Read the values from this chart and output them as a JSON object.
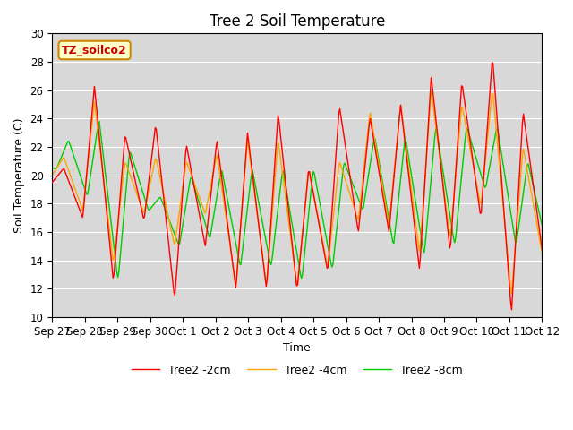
{
  "title": "Tree 2 Soil Temperature",
  "xlabel": "Time",
  "ylabel": "Soil Temperature (C)",
  "ylim": [
    10,
    30
  ],
  "annotation_text": "TZ_soilco2",
  "legend_labels": [
    "Tree2 -2cm",
    "Tree2 -4cm",
    "Tree2 -8cm"
  ],
  "colors": [
    "#ff0000",
    "#ffa500",
    "#00cc00"
  ],
  "bg_color": "#d8d8d8",
  "tick_labels": [
    "Sep 27",
    "Sep 28",
    "Sep 29",
    "Sep 30",
    "Oct 1",
    "Oct 2",
    "Oct 3",
    "Oct 4",
    "Oct 5",
    "Oct 6",
    "Oct 7",
    "Oct 8",
    "Oct 9",
    "Oct 10",
    "Oct 11",
    "Oct 12"
  ],
  "peaks_2cm": [
    20.5,
    26.3,
    22.9,
    23.6,
    22.2,
    22.5,
    23.0,
    24.4,
    20.5,
    24.9,
    24.1,
    25.0,
    27.0,
    26.6,
    28.4,
    24.5,
    24.2
  ],
  "valleys_2cm": [
    19.5,
    17.0,
    12.5,
    16.8,
    11.3,
    15.0,
    12.0,
    12.0,
    11.9,
    13.2,
    16.0,
    16.0,
    13.3,
    14.6,
    17.0,
    10.3,
    14.8
  ],
  "peaks_4cm": [
    21.3,
    25.2,
    21.0,
    21.3,
    21.0,
    21.5,
    22.5,
    22.5,
    20.5,
    21.0,
    24.5,
    25.0,
    26.0,
    25.0,
    26.1,
    22.0,
    21.0
  ],
  "valleys_4cm": [
    20.0,
    17.5,
    13.8,
    17.3,
    15.0,
    17.3,
    12.2,
    12.2,
    12.1,
    13.5,
    16.8,
    16.5,
    14.5,
    15.5,
    17.8,
    11.5,
    14.5
  ],
  "peaks_8cm": [
    22.5,
    24.0,
    21.8,
    18.5,
    20.0,
    20.5,
    20.5,
    20.5,
    20.5,
    21.0,
    22.8,
    22.8,
    23.5,
    23.5,
    23.5,
    21.0,
    20.5
  ],
  "valleys_8cm": [
    20.5,
    18.5,
    12.5,
    17.5,
    15.0,
    15.5,
    13.5,
    13.5,
    12.5,
    13.3,
    17.5,
    15.0,
    14.3,
    15.0,
    19.0,
    15.0,
    15.0
  ]
}
